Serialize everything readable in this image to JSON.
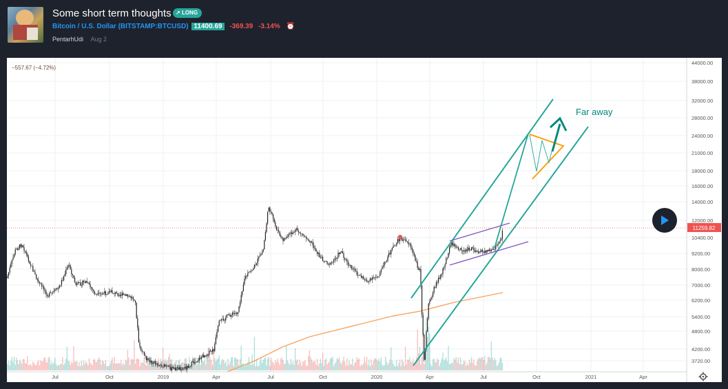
{
  "header": {
    "title": "Some short term thoughts",
    "badge": "LONG",
    "symbol": "Bitcoin / U.S. Dollar",
    "exchange": "BITSTAMP:BTCUSD",
    "price": "11400.69",
    "change": "-369.39",
    "change_pct": "-3.14%",
    "author": "PentarhUdi",
    "date": "Aug 2"
  },
  "chart": {
    "top_left_label": "−557.67 (−4.72%)",
    "annotation": "Far away",
    "current_price_label": "11259.82",
    "y_ticks": [
      "44000.00",
      "38000.00",
      "32000.00",
      "28000.00",
      "24000.00",
      "21000.00",
      "18000.00",
      "16000.00",
      "14000.00",
      "12000.00",
      "10400.00",
      "9200.00",
      "8000.00",
      "7000.00",
      "6200.00",
      "5400.00",
      "4800.00",
      "4200.00",
      "3720.00"
    ],
    "x_ticks": [
      "Jul",
      "Oct",
      "2019",
      "Apr",
      "Jul",
      "Oct",
      "2020",
      "Apr",
      "Jul",
      "Oct",
      "2021",
      "Apr"
    ],
    "colors": {
      "up": "#26a69a",
      "down": "#ef5350",
      "channel": "#26a69a",
      "ma": "#f7a35c",
      "flag": "#7e57c2",
      "triangle": "#ff9800"
    }
  }
}
